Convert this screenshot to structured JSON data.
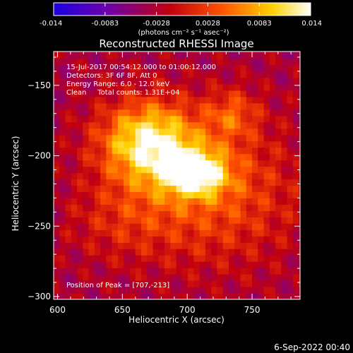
{
  "chart_data": {
    "type": "heatmap",
    "title": "Reconstructed RHESSI Image",
    "xlabel": "Heliocentric X (arcsec)",
    "ylabel": "Heliocentric Y (arcsec)",
    "xlim": [
      597,
      787
    ],
    "ylim": [
      -302,
      -126
    ],
    "x_ticks": [
      600,
      650,
      700,
      750
    ],
    "y_ticks": [
      -150,
      -200,
      -250,
      -300
    ],
    "colorbar": {
      "range": [
        -0.014,
        0.014
      ],
      "ticks": [
        "-0.014",
        "-0.0083",
        "-0.0028",
        "0.0028",
        "0.0083",
        "0.014"
      ],
      "unit_label": "(photons cm⁻² s⁻¹ asec⁻²)",
      "colors": [
        "#1a00e0",
        "#6a00b0",
        "#c00010",
        "#ff5000",
        "#ffd000",
        "#ffffff"
      ]
    },
    "annotations": {
      "time_range": "15-Jul-2017 00:54:12.000 to 01:00:12.000",
      "detectors": "Detectors: 3F 6F 8F, Att 0",
      "energy": "Energy Range: 6.0 - 12.0 keV",
      "method": "Clean     Total counts: 1.31E+04",
      "peak": "Position of Peak = [707,-213]"
    },
    "sources": [
      {
        "x": 670,
        "y": -190,
        "sx": 26,
        "sy": 20,
        "amp": 0.015
      },
      {
        "x": 706,
        "y": -212,
        "sx": 17,
        "sy": 11,
        "amp": 0.014
      },
      {
        "x": 720,
        "y": -225,
        "sx": 45,
        "sy": 35,
        "amp": 0.007
      },
      {
        "x": 735,
        "y": -170,
        "sx": 14,
        "sy": 12,
        "amp": 0.006
      },
      {
        "x": 650,
        "y": -245,
        "sx": 30,
        "sy": 20,
        "amp": 0.0035
      }
    ],
    "background_level": -0.0032
  },
  "footer": {
    "timestamp": "6-Sep-2022 00:40"
  }
}
